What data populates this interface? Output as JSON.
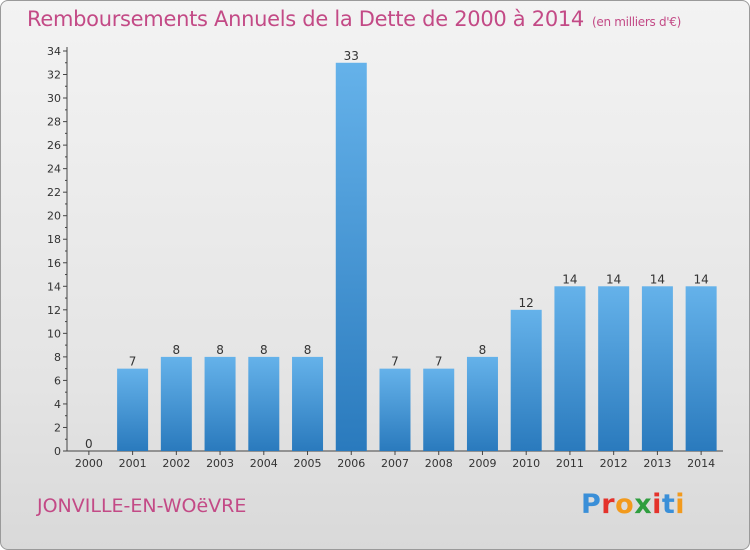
{
  "title": "Remboursements Annuels de la Dette de 2000 à 2014",
  "subtitle": "(en milliers d'€)",
  "commune": "JONVILLE-EN-WOëVRE",
  "logo": {
    "letters": [
      "P",
      "r",
      "o",
      "x",
      "i",
      "t",
      "i"
    ],
    "colors": [
      "#3a8fd8",
      "#e4322b",
      "#f29a1d",
      "#2f9e3f",
      "#e4322b",
      "#3a8fd8",
      "#f29a1d"
    ]
  },
  "colors": {
    "bar_top": "#65b2ea",
    "bar_bottom": "#2a7abd",
    "text": "#c34a86"
  },
  "chart_data": {
    "type": "bar",
    "categories": [
      "2000",
      "2001",
      "2002",
      "2003",
      "2004",
      "2005",
      "2006",
      "2007",
      "2008",
      "2009",
      "2010",
      "2011",
      "2012",
      "2013",
      "2014"
    ],
    "values": [
      0,
      7,
      8,
      8,
      8,
      8,
      33,
      7,
      7,
      8,
      12,
      14,
      14,
      14,
      14
    ],
    "value_labels": [
      "0",
      "7",
      "8",
      "8",
      "8",
      "8",
      "33",
      "7",
      "7",
      "8",
      "12",
      "14",
      "14",
      "14",
      "14"
    ],
    "y_ticks": [
      "0",
      "2",
      "4",
      "6",
      "8",
      "10",
      "12",
      "14",
      "16",
      "18",
      "20",
      "22",
      "24",
      "26",
      "28",
      "30",
      "32",
      "34"
    ],
    "ylim": [
      0,
      34
    ],
    "grid": false,
    "title": "Remboursements Annuels de la Dette de 2000 à 2014",
    "xlabel": "",
    "ylabel": ""
  }
}
